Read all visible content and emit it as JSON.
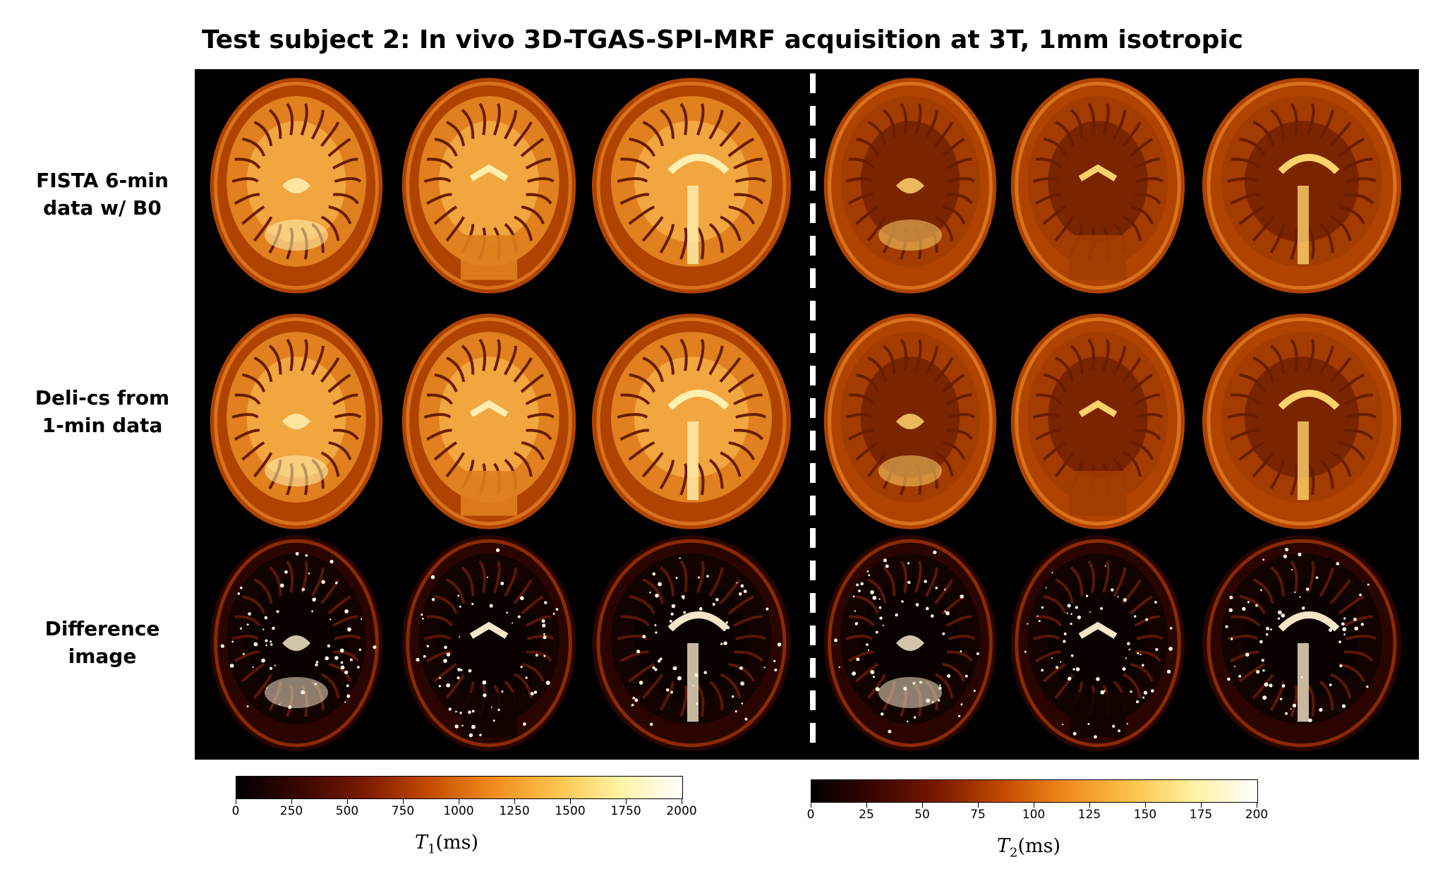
{
  "figure": {
    "title": "Test subject 2: In vivo 3D-TGAS-SPI-MRF acquisition at 3T, 1mm isotropic",
    "rows": [
      {
        "line1": "FISTA 6-min",
        "line2": "data w/ B0"
      },
      {
        "line1": "Deli-cs from",
        "line2": "1-min data"
      },
      {
        "line1": "Difference",
        "line2": "image"
      }
    ],
    "columns": [
      "axial",
      "coronal",
      "sagittal",
      "axial",
      "coronal",
      "sagittal"
    ],
    "map_groups": [
      "T1",
      "T2"
    ],
    "colormap": {
      "stops": [
        "#000000",
        "#3a0600",
        "#7a1a00",
        "#c24a00",
        "#f08a1c",
        "#fbc24a",
        "#fff2a0",
        "#ffffff"
      ]
    },
    "colorbars": [
      {
        "name": "T1 colorbar",
        "ticks": [
          "0",
          "250",
          "500",
          "750",
          "1000",
          "1250",
          "1500",
          "1750",
          "2000"
        ],
        "range": [
          0,
          2000
        ],
        "label_symbol": "T",
        "label_sub": "1",
        "label_unit": "(ms)"
      },
      {
        "name": "T2 colorbar",
        "ticks": [
          "0",
          "25",
          "50",
          "75",
          "100",
          "125",
          "150",
          "175",
          "200"
        ],
        "range": [
          0,
          200
        ],
        "label_symbol": "T",
        "label_sub": "2",
        "label_unit": "(ms)"
      }
    ]
  }
}
